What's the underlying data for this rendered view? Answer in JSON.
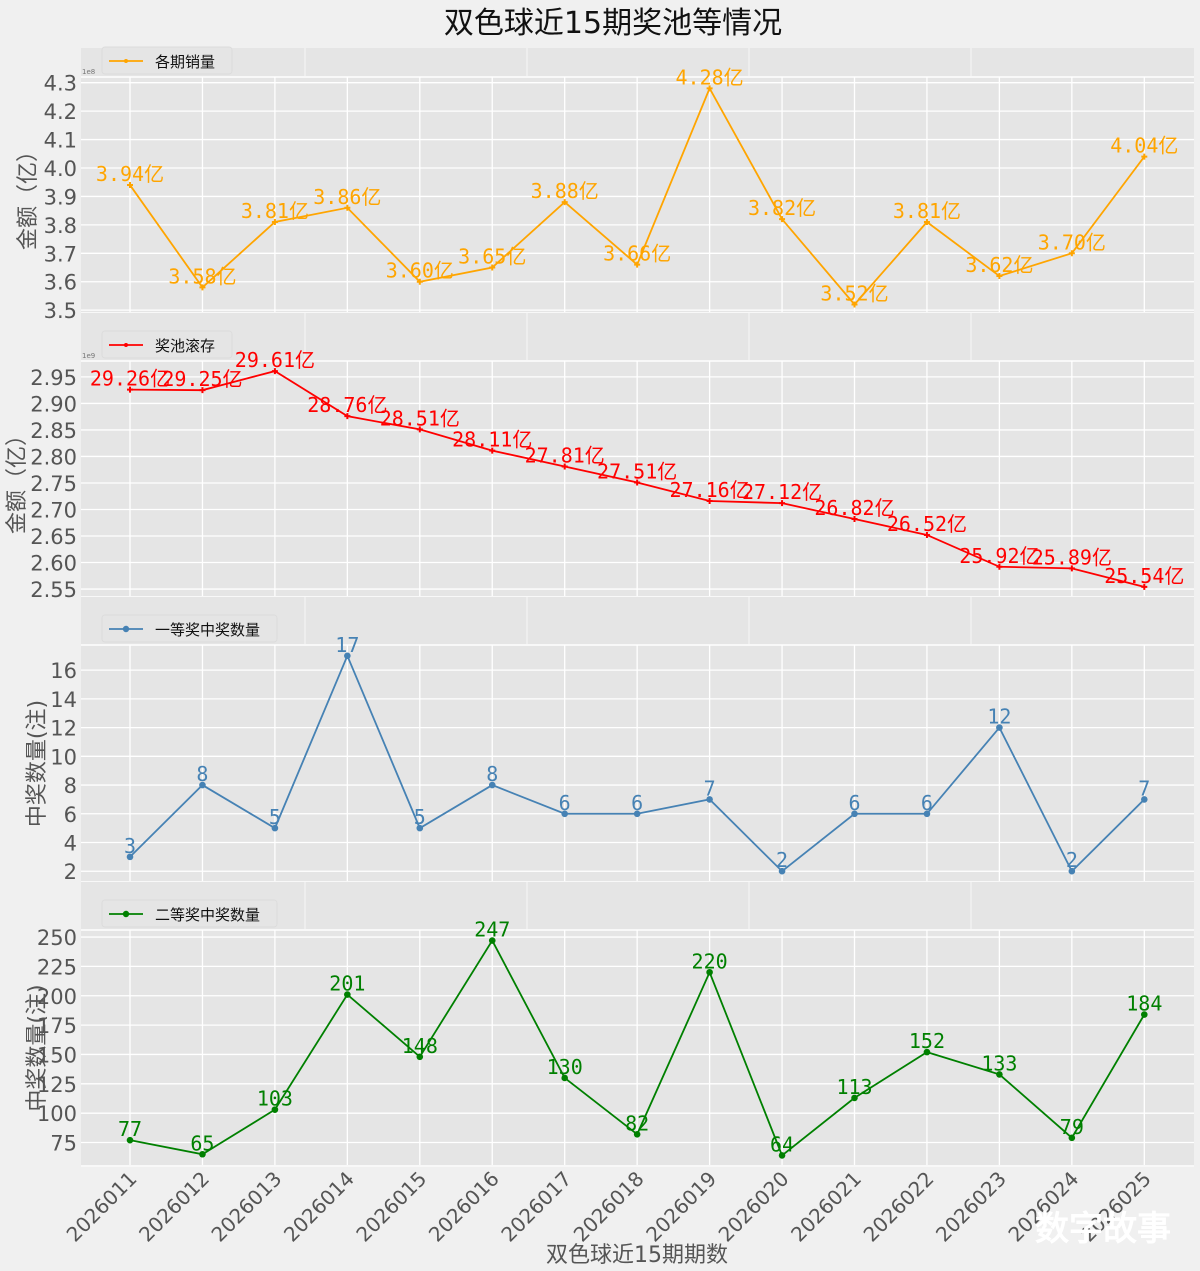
{
  "chart_data": {
    "type": "line",
    "title": "双色球近15期奖池等情况",
    "xlabel": "双色球近15期期数",
    "categories": [
      "2026011",
      "2026012",
      "2026013",
      "2026014",
      "2026015",
      "2026016",
      "2026017",
      "2026018",
      "2026019",
      "2026020",
      "2026021",
      "2026022",
      "2026023",
      "2026024",
      "2026025"
    ],
    "watermark": "数字故事",
    "panels": [
      {
        "name": "sales",
        "legend": "各期销量",
        "color": "#ffa500",
        "marker": "star",
        "ylabel": "金额（亿）",
        "offset_text": "1e8",
        "ylim": [
          3.49,
          4.32
        ],
        "yticks": [
          3.5,
          3.6,
          3.7,
          3.8,
          3.9,
          4.0,
          4.1,
          4.2,
          4.3
        ],
        "ytick_labels": [
          "3.5",
          "3.6",
          "3.7",
          "3.8",
          "3.9",
          "4.0",
          "4.1",
          "4.2",
          "4.3"
        ],
        "values": [
          3.94,
          3.58,
          3.81,
          3.86,
          3.6,
          3.65,
          3.88,
          3.66,
          4.28,
          3.82,
          3.52,
          3.81,
          3.62,
          3.7,
          4.04
        ],
        "labels": [
          "3.94亿",
          "3.58亿",
          "3.81亿",
          "3.86亿",
          "3.60亿",
          "3.65亿",
          "3.88亿",
          "3.66亿",
          "4.28亿",
          "3.82亿",
          "3.52亿",
          "3.81亿",
          "3.62亿",
          "3.70亿",
          "4.04亿"
        ]
      },
      {
        "name": "pool",
        "legend": "奖池滚存",
        "color": "#ff0000",
        "marker": "star",
        "ylabel": "金额（亿）",
        "offset_text": "1e9",
        "ylim": [
          2.535,
          2.98
        ],
        "yticks": [
          2.55,
          2.6,
          2.65,
          2.7,
          2.75,
          2.8,
          2.85,
          2.9,
          2.95
        ],
        "ytick_labels": [
          "2.55",
          "2.60",
          "2.65",
          "2.70",
          "2.75",
          "2.80",
          "2.85",
          "2.90",
          "2.95"
        ],
        "values": [
          2.926,
          2.925,
          2.961,
          2.876,
          2.851,
          2.811,
          2.781,
          2.751,
          2.716,
          2.712,
          2.682,
          2.652,
          2.592,
          2.589,
          2.554
        ],
        "labels": [
          "29.26亿",
          "29.25亿",
          "29.61亿",
          "28.76亿",
          "28.51亿",
          "28.11亿",
          "27.81亿",
          "27.51亿",
          "27.16亿",
          "27.12亿",
          "26.82亿",
          "26.52亿",
          "25.92亿",
          "25.89亿",
          "25.54亿"
        ]
      },
      {
        "name": "first_prize",
        "legend": "一等奖中奖数量",
        "color": "#4682b4",
        "marker": "dot",
        "ylabel": "中奖数量(注)",
        "offset_text": "",
        "ylim": [
          1.25,
          17.75
        ],
        "yticks": [
          2,
          4,
          6,
          8,
          10,
          12,
          14,
          16
        ],
        "ytick_labels": [
          "2",
          "4",
          "6",
          "8",
          "10",
          "12",
          "14",
          "16"
        ],
        "values": [
          3,
          8,
          5,
          17,
          5,
          8,
          6,
          6,
          7,
          2,
          6,
          6,
          12,
          2,
          7
        ],
        "labels": [
          "3",
          "8",
          "5",
          "17",
          "5",
          "8",
          "6",
          "6",
          "7",
          "2",
          "6",
          "6",
          "12",
          "2",
          "7"
        ]
      },
      {
        "name": "second_prize",
        "legend": "二等奖中奖数量",
        "color": "#008000",
        "marker": "dot",
        "ylabel": "中奖数量(注)",
        "offset_text": "",
        "ylim": [
          55,
          256
        ],
        "yticks": [
          75,
          100,
          125,
          150,
          175,
          200,
          225,
          250
        ],
        "ytick_labels": [
          "75",
          "100",
          "125",
          "150",
          "175",
          "200",
          "225",
          "250"
        ],
        "values": [
          77,
          65,
          103,
          201,
          148,
          247,
          130,
          82,
          220,
          64,
          113,
          152,
          133,
          79,
          184
        ],
        "labels": [
          "77",
          "65",
          "103",
          "201",
          "148",
          "247",
          "130",
          "82",
          "220",
          "64",
          "113",
          "152",
          "133",
          "79",
          "184"
        ]
      }
    ],
    "grid": true,
    "legend_position": "top-left"
  }
}
